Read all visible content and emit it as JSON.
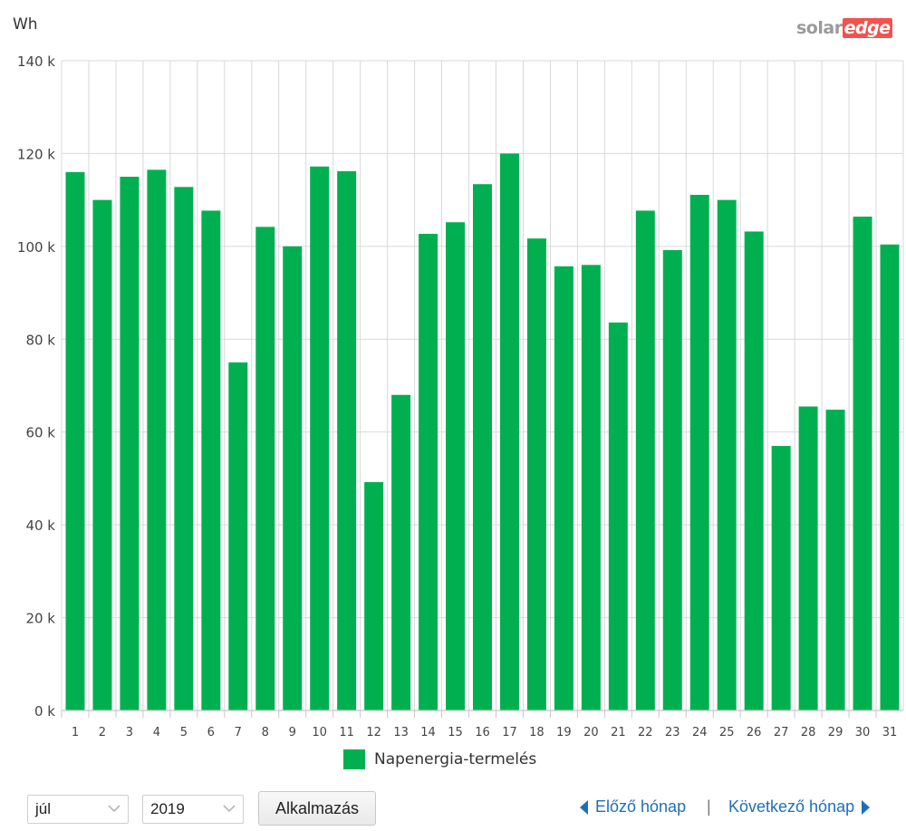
{
  "chart_data": {
    "type": "bar",
    "ylabel": "Wh",
    "ylim": [
      0,
      140000
    ],
    "yticks": [
      0,
      20000,
      40000,
      60000,
      80000,
      100000,
      120000,
      140000
    ],
    "ytick_labels": [
      "0 k",
      "20 k",
      "40 k",
      "60 k",
      "80 k",
      "100 k",
      "120 k",
      "140 k"
    ],
    "categories": [
      "1",
      "2",
      "3",
      "4",
      "5",
      "6",
      "7",
      "8",
      "9",
      "10",
      "11",
      "12",
      "13",
      "14",
      "15",
      "16",
      "17",
      "18",
      "19",
      "20",
      "21",
      "22",
      "23",
      "24",
      "25",
      "26",
      "27",
      "28",
      "29",
      "30",
      "31"
    ],
    "series": [
      {
        "name": "Napenergia-termelés",
        "color": "#00b050",
        "values": [
          116000,
          110000,
          115000,
          116500,
          112800,
          107700,
          75000,
          104200,
          100000,
          117200,
          116200,
          49200,
          68000,
          102700,
          105200,
          113400,
          120000,
          101700,
          95700,
          96000,
          83600,
          107700,
          99200,
          111100,
          110000,
          103200,
          57000,
          65500,
          64800,
          106400,
          100400
        ]
      }
    ],
    "grid": true,
    "legend_position": "bottom-center"
  },
  "logo": {
    "part1": "solar",
    "part2": "edge"
  },
  "controls": {
    "month_value": "júl",
    "year_value": "2019",
    "apply_label": "Alkalmazás",
    "prev_label": "Előző hónap",
    "separator": "|",
    "next_label": "Következő hónap"
  }
}
